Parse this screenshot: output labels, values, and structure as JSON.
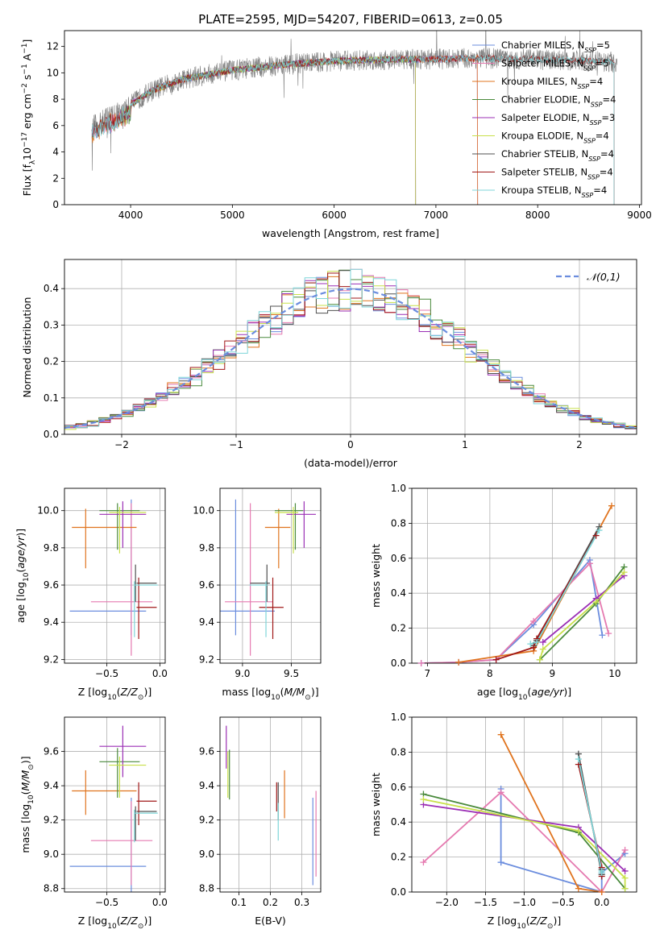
{
  "title": "PLATE=2595, MJD=54207, FIBERID=0613, z=0.05",
  "colors": {
    "Chabrier MILES": "#6b8dde",
    "Salpeter MILES": "#e57ab0",
    "Kroupa MILES": "#e0741f",
    "Chabrier ELODIE": "#4a8a3c",
    "Salpeter ELODIE": "#9b2fb5",
    "Kroupa ELODIE": "#c8e04a",
    "Chabrier STELIB": "#505050",
    "Salpeter STELIB": "#a01818",
    "Kroupa STELIB": "#7fd6d9"
  },
  "chart_data": [
    {
      "id": "spectrum",
      "type": "line",
      "xlabel": "wavelength [Angstrom, rest frame]",
      "ylabel": "Flux [f_λ10^-17 erg cm^-2 s^-1 A^-1]",
      "xlim": [
        3350,
        9020
      ],
      "ylim": [
        0,
        13.2
      ],
      "xticks": [
        "4000",
        "5000",
        "6000",
        "7000",
        "8000",
        "9000"
      ],
      "yticks": [
        "0",
        "2",
        "4",
        "6",
        "8",
        "10",
        "12"
      ],
      "legend_position": "right",
      "legend": [
        {
          "label": "Chabrier MILES, N_SSP=5",
          "series": "Chabrier MILES"
        },
        {
          "label": "Salpeter MILES, N_SSP=5",
          "series": "Salpeter MILES"
        },
        {
          "label": "Kroupa MILES, N_SSP=4",
          "series": "Kroupa MILES"
        },
        {
          "label": "Chabrier ELODIE, N_SSP=4",
          "series": "Chabrier ELODIE"
        },
        {
          "label": "Salpeter ELODIE, N_SSP=3",
          "series": "Salpeter ELODIE"
        },
        {
          "label": "Kroupa ELODIE, N_SSP=4",
          "series": "Kroupa ELODIE"
        },
        {
          "label": "Chabrier STELIB, N_SSP=4",
          "series": "Chabrier STELIB"
        },
        {
          "label": "Salpeter STELIB, N_SSP=4",
          "series": "Salpeter STELIB"
        },
        {
          "label": "Kroupa STELIB, N_SSP=4",
          "series": "Kroupa STELIB"
        }
      ],
      "continuum": {
        "x": [
          3620,
          3750,
          3900,
          4000,
          4200,
          4500,
          5000,
          5500,
          6000,
          6500,
          7000,
          7500,
          8000,
          8500,
          8780
        ],
        "y": [
          6.0,
          6.6,
          7.1,
          7.6,
          8.6,
          9.5,
          10.2,
          10.6,
          10.9,
          11.0,
          11.05,
          11.1,
          11.0,
          10.9,
          10.8
        ]
      },
      "data_x_range": [
        3620,
        8780
      ],
      "model_x_range": {
        "MILES": [
          3620,
          7410
        ],
        "ELODIE": [
          3900,
          6800
        ],
        "STELIB": [
          3620,
          8750
        ]
      }
    },
    {
      "id": "residuals",
      "type": "line",
      "xlabel": "(data-model)/error",
      "ylabel": "Normed distribution",
      "xlim": [
        -2.5,
        2.5
      ],
      "ylim": [
        0,
        0.48
      ],
      "xticks": [
        "−2",
        "−1",
        "0",
        "1",
        "2"
      ],
      "yticks": [
        "0.0",
        "0.1",
        "0.2",
        "0.3",
        "0.4"
      ],
      "legend": [
        "𝒩(0,1)"
      ],
      "legend_position": "top-right",
      "grid": true,
      "bin_width": 0.1,
      "bin_range": [
        -2.5,
        2.5
      ]
    },
    {
      "id": "age-vs-Z",
      "type": "scatter",
      "xlabel": "Z [log10(Z/Z⊙)]",
      "ylabel": "age  [log10(age/yr)]",
      "xlim": [
        -0.9,
        0.05
      ],
      "ylim": [
        9.18,
        10.12
      ],
      "xticks": [
        "−0.5",
        "0.0"
      ],
      "yticks": [
        "9.2",
        "9.4",
        "9.6",
        "9.8",
        "10.0"
      ],
      "grid": true
    },
    {
      "id": "age-vs-mass",
      "type": "scatter",
      "xlabel": "mass [log10(M/M⊙)]",
      "ylabel": "",
      "xlim": [
        8.77,
        9.8
      ],
      "ylim": [
        9.18,
        10.12
      ],
      "xticks": [
        "9.0",
        "9.5"
      ],
      "yticks": [
        "9.2",
        "9.4",
        "9.6",
        "9.8",
        "10.0"
      ],
      "grid": true
    },
    {
      "id": "weight-vs-age",
      "type": "line",
      "xlabel": "age  [log10(age/yr)]",
      "ylabel": "mass weight",
      "xlim": [
        6.75,
        10.35
      ],
      "ylim": [
        0,
        1.0
      ],
      "xticks": [
        "7",
        "8",
        "9",
        "10"
      ],
      "yticks": [
        "0.0",
        "0.2",
        "0.4",
        "0.6",
        "0.8",
        "1.0"
      ],
      "grid": true,
      "series": [
        {
          "name": "Chabrier MILES",
          "x": [
            6.9,
            7.5,
            8.1,
            8.7,
            9.6,
            9.8
          ],
          "y": [
            0.0,
            0.005,
            0.02,
            0.22,
            0.59,
            0.16
          ]
        },
        {
          "name": "Salpeter MILES",
          "x": [
            6.9,
            7.5,
            8.1,
            8.7,
            9.6,
            9.9
          ],
          "y": [
            0.0,
            0.005,
            0.02,
            0.24,
            0.57,
            0.17
          ]
        },
        {
          "name": "Kroupa MILES",
          "x": [
            7.5,
            8.7,
            9.95
          ],
          "y": [
            0.005,
            0.07,
            0.9
          ]
        },
        {
          "name": "Chabrier ELODIE",
          "x": [
            8.8,
            9.7,
            10.15
          ],
          "y": [
            0.02,
            0.34,
            0.55
          ]
        },
        {
          "name": "Salpeter ELODIE",
          "x": [
            8.85,
            9.7,
            10.15
          ],
          "y": [
            0.12,
            0.37,
            0.5
          ]
        },
        {
          "name": "Kroupa ELODIE",
          "x": [
            8.8,
            8.85,
            9.7,
            10.15
          ],
          "y": [
            0.02,
            0.08,
            0.35,
            0.52
          ]
        },
        {
          "name": "Chabrier STELIB",
          "x": [
            8.7,
            8.75,
            9.75
          ],
          "y": [
            0.1,
            0.13,
            0.78
          ]
        },
        {
          "name": "Salpeter STELIB",
          "x": [
            8.1,
            8.7,
            8.75,
            9.7
          ],
          "y": [
            0.02,
            0.09,
            0.14,
            0.73
          ]
        },
        {
          "name": "Kroupa STELIB",
          "x": [
            8.65,
            8.75,
            9.75
          ],
          "y": [
            0.11,
            0.12,
            0.76
          ]
        }
      ]
    },
    {
      "id": "mass-vs-Z",
      "type": "scatter",
      "xlabel": "Z [log10(Z/Z⊙)]",
      "ylabel": "mass [log10(M/M⊙)]",
      "xlim": [
        -0.9,
        0.05
      ],
      "ylim": [
        8.78,
        9.8
      ],
      "xticks": [
        "−0.5",
        "0.0"
      ],
      "yticks": [
        "8.8",
        "9.0",
        "9.2",
        "9.4",
        "9.6"
      ],
      "grid": true
    },
    {
      "id": "mass-vs-ebv",
      "type": "scatter",
      "xlabel": "E(B-V)",
      "ylabel": "",
      "xlim": [
        0.04,
        0.36
      ],
      "ylim": [
        8.78,
        9.8
      ],
      "xticks": [
        "0.1",
        "0.2",
        "0.3"
      ],
      "yticks": [
        "8.8",
        "9.0",
        "9.2",
        "9.4",
        "9.6"
      ],
      "grid": true
    },
    {
      "id": "weight-vs-Z",
      "type": "line",
      "xlabel": "Z [log10(Z/Z⊙)]",
      "ylabel": "mass weight",
      "xlim": [
        -2.45,
        0.45
      ],
      "ylim": [
        0,
        1.0
      ],
      "xticks": [
        "−2.0",
        "−1.5",
        "−1.0",
        "−0.5",
        "0.0"
      ],
      "yticks": [
        "0.0",
        "0.2",
        "0.4",
        "0.6",
        "0.8",
        "1.0"
      ],
      "grid": true,
      "series": [
        {
          "name": "Chabrier MILES",
          "x": [
            -1.3,
            -1.3,
            -1.3,
            0.0,
            0.0,
            0.3
          ],
          "y": [
            0.59,
            0.17,
            0.17,
            0.0,
            0.11,
            0.22
          ]
        },
        {
          "name": "Salpeter MILES",
          "x": [
            -2.3,
            -1.3,
            0.0,
            0.3
          ],
          "y": [
            0.17,
            0.57,
            0.0,
            0.24
          ]
        },
        {
          "name": "Kroupa MILES",
          "x": [
            -1.3,
            -0.3,
            0.0
          ],
          "y": [
            0.9,
            0.02,
            0.0
          ]
        },
        {
          "name": "Chabrier ELODIE",
          "x": [
            -2.3,
            -0.3,
            0.3
          ],
          "y": [
            0.56,
            0.34,
            0.02
          ]
        },
        {
          "name": "Salpeter ELODIE",
          "x": [
            -2.3,
            -0.3,
            0.3
          ],
          "y": [
            0.5,
            0.37,
            0.12
          ]
        },
        {
          "name": "Kroupa ELODIE",
          "x": [
            -2.3,
            -0.3,
            0.3,
            0.3
          ],
          "y": [
            0.53,
            0.35,
            0.08,
            0.02
          ]
        },
        {
          "name": "Chabrier STELIB",
          "x": [
            -0.3,
            0.0,
            0.0
          ],
          "y": [
            0.79,
            0.1,
            0.13
          ]
        },
        {
          "name": "Salpeter STELIB",
          "x": [
            -0.3,
            0.0,
            0.0
          ],
          "y": [
            0.73,
            0.14,
            0.09
          ]
        },
        {
          "name": "Kroupa STELIB",
          "x": [
            -0.3,
            0.0,
            0.0
          ],
          "y": [
            0.76,
            0.12,
            0.11
          ]
        }
      ]
    }
  ],
  "errorbars": {
    "Chabrier MILES": {
      "Z": [
        -0.27,
        -0.85,
        -0.13
      ],
      "age": [
        9.46,
        9.33,
        10.06
      ],
      "mass": [
        8.93,
        8.77,
        9.33
      ],
      "ebv": [
        0.335,
        8.82,
        9.33
      ]
    },
    "Salpeter MILES": {
      "Z": [
        -0.27,
        -0.65,
        -0.07
      ],
      "age": [
        9.51,
        9.22,
        10.04
      ],
      "mass": [
        9.08,
        8.82,
        9.31
      ],
      "ebv": [
        0.345,
        8.87,
        9.37
      ]
    },
    "Kroupa MILES": {
      "Z": [
        -0.7,
        -0.83,
        -0.22
      ],
      "age": [
        9.91,
        9.69,
        10.01
      ],
      "mass": [
        9.37,
        9.23,
        9.49
      ],
      "ebv": [
        0.245,
        9.21,
        9.49
      ]
    },
    "Chabrier ELODIE": {
      "Z": [
        -0.4,
        -0.57,
        -0.19
      ],
      "age": [
        10.0,
        9.79,
        10.04
      ],
      "mass": [
        9.54,
        9.33,
        9.62
      ],
      "ebv": [
        0.07,
        9.32,
        9.61
      ]
    },
    "Salpeter ELODIE": {
      "Z": [
        -0.35,
        -0.57,
        -0.13
      ],
      "age": [
        9.98,
        9.8,
        10.05
      ],
      "mass": [
        9.63,
        9.45,
        9.75
      ],
      "ebv": [
        0.06,
        9.5,
        9.75
      ]
    },
    "Kroupa ELODIE": {
      "Z": [
        -0.38,
        -0.48,
        -0.13
      ],
      "age": [
        9.99,
        9.77,
        10.02
      ],
      "mass": [
        9.52,
        9.33,
        9.57
      ],
      "ebv": [
        0.065,
        9.33,
        9.6
      ]
    },
    "Chabrier STELIB": {
      "Z": [
        -0.23,
        -0.22,
        -0.03
      ],
      "age": [
        9.61,
        9.51,
        9.71
      ],
      "mass": [
        9.25,
        9.08,
        9.28
      ],
      "ebv": [
        0.225,
        9.2,
        9.42
      ]
    },
    "Salpeter STELIB": {
      "Z": [
        -0.2,
        -0.22,
        -0.03
      ],
      "age": [
        9.48,
        9.31,
        9.64
      ],
      "mass": [
        9.31,
        9.17,
        9.42
      ],
      "ebv": [
        0.22,
        9.25,
        9.42
      ]
    },
    "Kroupa STELIB": {
      "Z": [
        -0.24,
        -0.24,
        -0.02
      ],
      "age": [
        9.6,
        9.32,
        9.62
      ],
      "mass": [
        9.24,
        9.07,
        9.26
      ],
      "ebv": [
        0.225,
        9.08,
        9.3
      ]
    }
  }
}
